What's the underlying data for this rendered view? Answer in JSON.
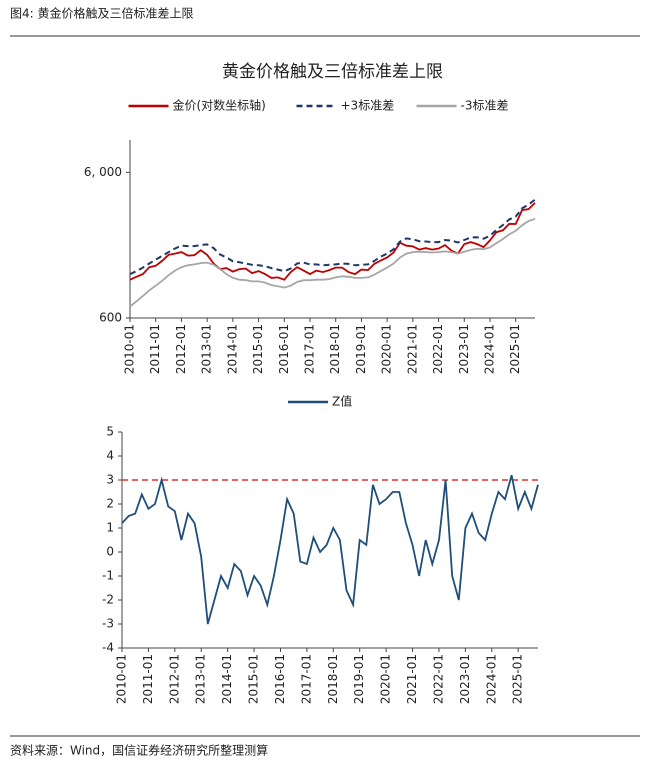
{
  "header": {
    "title": "图4: 黄金价格触及三倍标准差上限"
  },
  "footer": {
    "source": "资料来源：Wind，国信证券经济研究所整理测算"
  },
  "chart_data": [
    {
      "type": "line",
      "title": "黄金价格触及三倍标准差上限",
      "ylog": true,
      "x": [
        "2010-01",
        "2010-04",
        "2010-07",
        "2010-10",
        "2011-01",
        "2011-04",
        "2011-07",
        "2011-10",
        "2012-01",
        "2012-04",
        "2012-07",
        "2012-10",
        "2013-01",
        "2013-04",
        "2013-07",
        "2013-10",
        "2014-01",
        "2014-04",
        "2014-07",
        "2014-10",
        "2015-01",
        "2015-04",
        "2015-07",
        "2015-10",
        "2016-01",
        "2016-04",
        "2016-07",
        "2016-10",
        "2017-01",
        "2017-04",
        "2017-07",
        "2017-10",
        "2018-01",
        "2018-04",
        "2018-07",
        "2018-10",
        "2019-01",
        "2019-04",
        "2019-07",
        "2019-10",
        "2020-01",
        "2020-04",
        "2020-07",
        "2020-10",
        "2021-01",
        "2021-04",
        "2021-07",
        "2021-10",
        "2022-01",
        "2022-04",
        "2022-07",
        "2022-10",
        "2023-01",
        "2023-04",
        "2023-07",
        "2023-10",
        "2024-01",
        "2024-04",
        "2024-07",
        "2024-10",
        "2025-01",
        "2025-04",
        "2025-07",
        "2025-10"
      ],
      "xticks": [
        "2010-01",
        "2011-01",
        "2012-01",
        "2013-01",
        "2014-01",
        "2015-01",
        "2016-01",
        "2017-01",
        "2018-01",
        "2019-01",
        "2020-01",
        "2021-01",
        "2022-01",
        "2023-01",
        "2024-01",
        "2025-01"
      ],
      "ylim": [
        600,
        10000
      ],
      "yticks": [
        600,
        {
          "value": 6000,
          "label": "6, 000"
        }
      ],
      "series": [
        {
          "name": "金价(对数坐标轴)",
          "color": "#c00000",
          "dash": false,
          "values": [
            1100,
            1150,
            1200,
            1340,
            1370,
            1480,
            1630,
            1660,
            1700,
            1610,
            1620,
            1750,
            1630,
            1420,
            1300,
            1320,
            1250,
            1300,
            1310,
            1220,
            1260,
            1200,
            1130,
            1140,
            1100,
            1240,
            1340,
            1270,
            1200,
            1270,
            1240,
            1280,
            1330,
            1330,
            1240,
            1200,
            1290,
            1280,
            1410,
            1490,
            1560,
            1690,
            1970,
            1880,
            1860,
            1770,
            1810,
            1770,
            1800,
            1900,
            1740,
            1660,
            1930,
            1990,
            1930,
            1840,
            2050,
            2330,
            2400,
            2660,
            2650,
            3300,
            3350,
            3700
          ]
        },
        {
          "name": "+3标准差",
          "color": "#1f3864",
          "dash": true,
          "values": [
            1200,
            1260,
            1330,
            1420,
            1510,
            1600,
            1700,
            1800,
            1880,
            1870,
            1870,
            1900,
            1920,
            1810,
            1640,
            1560,
            1470,
            1450,
            1420,
            1390,
            1380,
            1360,
            1320,
            1290,
            1260,
            1310,
            1420,
            1440,
            1400,
            1400,
            1380,
            1390,
            1400,
            1420,
            1410,
            1380,
            1390,
            1400,
            1480,
            1580,
            1660,
            1780,
            2010,
            2110,
            2080,
            2020,
            2010,
            1990,
            1990,
            2060,
            2040,
            1980,
            2060,
            2140,
            2150,
            2100,
            2200,
            2420,
            2610,
            2850,
            2980,
            3400,
            3600,
            3900
          ]
        },
        {
          "name": "-3标准差",
          "color": "#a6a6a6",
          "dash": false,
          "values": [
            720,
            780,
            850,
            930,
            1000,
            1080,
            1180,
            1270,
            1340,
            1380,
            1400,
            1430,
            1440,
            1390,
            1300,
            1200,
            1130,
            1100,
            1090,
            1070,
            1070,
            1050,
            1010,
            990,
            970,
            1000,
            1060,
            1090,
            1090,
            1100,
            1100,
            1110,
            1140,
            1160,
            1150,
            1130,
            1130,
            1140,
            1190,
            1260,
            1330,
            1420,
            1560,
            1660,
            1700,
            1710,
            1700,
            1690,
            1700,
            1720,
            1700,
            1660,
            1710,
            1760,
            1790,
            1780,
            1830,
            1960,
            2090,
            2250,
            2380,
            2600,
            2780,
            2880
          ]
        }
      ]
    },
    {
      "type": "line",
      "ylog": false,
      "x": [
        "2010-01",
        "2010-04",
        "2010-07",
        "2010-10",
        "2011-01",
        "2011-04",
        "2011-07",
        "2011-10",
        "2012-01",
        "2012-04",
        "2012-07",
        "2012-10",
        "2013-01",
        "2013-04",
        "2013-07",
        "2013-10",
        "2014-01",
        "2014-04",
        "2014-07",
        "2014-10",
        "2015-01",
        "2015-04",
        "2015-07",
        "2015-10",
        "2016-01",
        "2016-04",
        "2016-07",
        "2016-10",
        "2017-01",
        "2017-04",
        "2017-07",
        "2017-10",
        "2018-01",
        "2018-04",
        "2018-07",
        "2018-10",
        "2019-01",
        "2019-04",
        "2019-07",
        "2019-10",
        "2020-01",
        "2020-04",
        "2020-07",
        "2020-10",
        "2021-01",
        "2021-04",
        "2021-07",
        "2021-10",
        "2022-01",
        "2022-04",
        "2022-07",
        "2022-10",
        "2023-01",
        "2023-04",
        "2023-07",
        "2023-10",
        "2024-01",
        "2024-04",
        "2024-07",
        "2024-10",
        "2025-01",
        "2025-04",
        "2025-07",
        "2025-10"
      ],
      "xticks": [
        "2010-01",
        "2011-01",
        "2012-01",
        "2013-01",
        "2014-01",
        "2015-01",
        "2016-01",
        "2017-01",
        "2018-01",
        "2019-01",
        "2020-01",
        "2021-01",
        "2022-01",
        "2023-01",
        "2024-01",
        "2025-01"
      ],
      "ylim": [
        -4,
        5
      ],
      "yticks": [
        -4,
        -3,
        -2,
        -1,
        0,
        1,
        2,
        3,
        4,
        5
      ],
      "hline": {
        "value": 3,
        "color": "#e03030"
      },
      "series": [
        {
          "name": "Z值",
          "color": "#1f4e79",
          "dash": false,
          "values": [
            1.2,
            1.5,
            1.6,
            2.4,
            1.8,
            2.0,
            3.0,
            1.9,
            1.7,
            0.5,
            1.6,
            1.2,
            -0.2,
            -3.0,
            -2.0,
            -1.0,
            -1.5,
            -0.5,
            -0.8,
            -1.8,
            -1.0,
            -1.4,
            -2.2,
            -1.0,
            0.5,
            2.2,
            1.6,
            -0.4,
            -0.5,
            0.6,
            0.0,
            0.3,
            1.0,
            0.5,
            -1.6,
            -2.2,
            0.5,
            0.3,
            2.8,
            2.0,
            2.2,
            2.5,
            2.5,
            1.2,
            0.3,
            -1.0,
            0.5,
            -0.5,
            0.5,
            3.0,
            -1.0,
            -2.0,
            1.0,
            1.6,
            0.8,
            0.5,
            1.6,
            2.5,
            2.2,
            3.2,
            1.8,
            2.5,
            1.8,
            2.8
          ]
        }
      ]
    }
  ]
}
